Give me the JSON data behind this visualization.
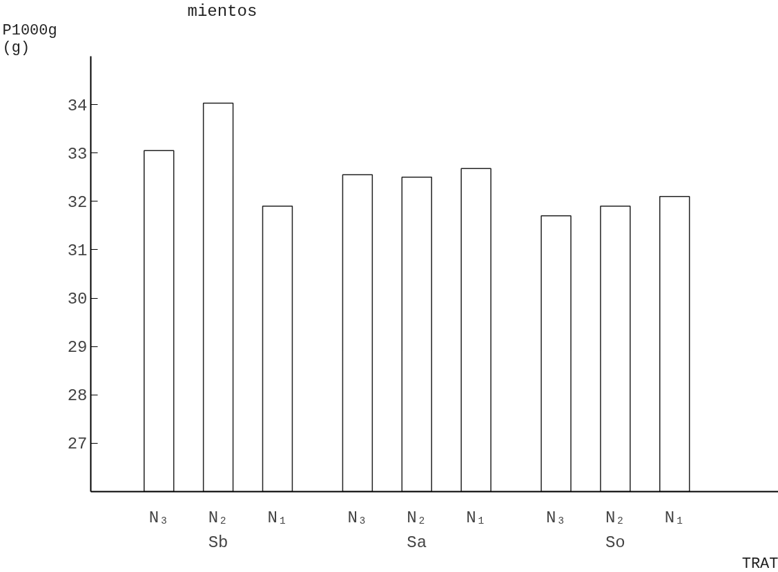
{
  "chart_data": {
    "type": "bar",
    "title": "mientos",
    "xlabel": "TRAT",
    "ylabel": "P1000g\n(g)",
    "categories": [
      "N₃",
      "N₂",
      "N₁",
      "N₃",
      "N₂",
      "N₁",
      "N₃",
      "N₂",
      "N₁"
    ],
    "values": [
      33.05,
      34.03,
      31.9,
      32.55,
      32.5,
      32.68,
      31.7,
      31.9,
      32.1
    ],
    "color": "#ffffff",
    "annotations": [
      "Sb",
      "Sa",
      "So"
    ],
    "ylim": [
      26,
      35
    ],
    "yticks": [
      27,
      28,
      29,
      30,
      31,
      32,
      33,
      34
    ],
    "grid": false
  }
}
